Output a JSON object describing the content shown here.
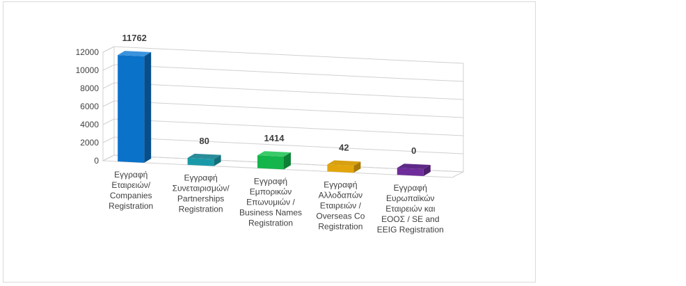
{
  "chart_data": {
    "type": "bar",
    "style": "3d-column",
    "title": "",
    "xlabel": "",
    "ylabel": "",
    "ylim": [
      0,
      12000
    ],
    "yticks": [
      0,
      2000,
      4000,
      6000,
      8000,
      10000,
      12000
    ],
    "grid": true,
    "legend": "none",
    "categories": [
      [
        "Εγγραφή",
        "Εταιρειών/",
        "Companies",
        "Registration"
      ],
      [
        "Εγγραφή",
        "Συνεταιρισμών/",
        "Partnerships",
        "Registration"
      ],
      [
        "Εγγραφή",
        "Εμπορικών",
        "Επωνυμιών /",
        "Business Names",
        "Registration"
      ],
      [
        "Εγγραφή",
        "Αλλοδαπών",
        "Εταιρειών /",
        "Overseas Co",
        "Registration"
      ],
      [
        "Εγγραφή",
        "Ευρωπαϊκών",
        "Εταιρειών και",
        "ΕΟΟΣ / SE and",
        "EEIG Registration"
      ]
    ],
    "values": [
      11762,
      80,
      1414,
      42,
      0
    ],
    "data_labels": [
      "11762",
      "80",
      "1414",
      "42",
      "0"
    ],
    "colors": [
      {
        "front": "#0a72c8",
        "side": "#064f8c",
        "top": "#3b93dd"
      },
      {
        "front": "#1a9aa8",
        "side": "#12707a",
        "top": "#2a8c99"
      },
      {
        "front": "#14b54a",
        "side": "#0c8035",
        "top": "#3acb68"
      },
      {
        "front": "#e2a60c",
        "side": "#a87a06",
        "top": "#d6a010"
      },
      {
        "front": "#6f2d9b",
        "side": "#4e1f6f",
        "top": "#5e2a88"
      }
    ]
  }
}
